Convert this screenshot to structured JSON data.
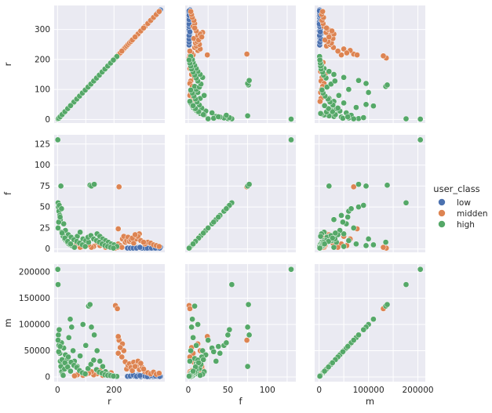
{
  "chart_data": {
    "type": "scatter",
    "kind": "pairplot",
    "variables": [
      "r",
      "f",
      "m"
    ],
    "hue": "user_class",
    "legend": {
      "title": "user_class",
      "placement": "right",
      "entries": [
        {
          "name": "low",
          "color": "#4c72b0"
        },
        {
          "name": "midden",
          "color": "#dd8452"
        },
        {
          "name": "high",
          "color": "#55a868"
        }
      ]
    },
    "axes": {
      "r": {
        "lim": [
          -12,
          380
        ],
        "ticks": [
          0,
          100,
          200,
          300
        ],
        "tick_labels": [
          "0",
          "100",
          "200",
          "300"
        ],
        "bottom_tick_labels": [
          "0",
          "200"
        ],
        "label": "r"
      },
      "f": {
        "lim": [
          -4,
          136
        ],
        "ticks": [
          0,
          25,
          50,
          75,
          100,
          125
        ],
        "tick_labels": [
          "0",
          "25",
          "50",
          "75",
          "100",
          "125"
        ],
        "bottom_tick_labels": [
          "0",
          "50",
          "100"
        ],
        "label": "f"
      },
      "m": {
        "lim": [
          -9000,
          215000
        ],
        "ticks": [
          0,
          50000,
          100000,
          150000,
          200000
        ],
        "tick_labels": [
          "0",
          "50000",
          "100000",
          "150000",
          "200000"
        ],
        "bottom_tick_labels": [
          "0",
          "100000",
          "200000"
        ],
        "label": "m"
      }
    },
    "grid": true,
    "points": {
      "low": {
        "r": [
          345,
          352,
          360,
          338,
          330,
          322,
          315,
          305,
          295,
          285,
          278,
          270,
          262,
          255,
          248,
          300,
          290,
          310,
          325,
          340,
          355,
          365,
          258,
          268,
          280,
          292,
          318,
          333,
          347,
          362
        ],
        "f": [
          1,
          1,
          2,
          1,
          1,
          2,
          1,
          1,
          1,
          2,
          1,
          1,
          1,
          1,
          1,
          1,
          2,
          1,
          1,
          1,
          1,
          2,
          1,
          1,
          1,
          2,
          1,
          1,
          1,
          1
        ],
        "m": [
          500,
          1200,
          3000,
          800,
          2500,
          4000,
          1500,
          2000,
          600,
          3500,
          900,
          1800,
          2200,
          700,
          1100,
          2600,
          3200,
          1400,
          500,
          2900,
          4200,
          800,
          1600,
          3800,
          1000,
          2400,
          600,
          3000,
          1900,
          700
        ]
      },
      "midden": {
        "r": [
          205,
          212,
          218,
          190,
          180,
          170,
          160,
          150,
          140,
          128,
          120,
          110,
          100,
          90,
          80,
          70,
          60,
          215,
          230,
          235,
          240,
          245,
          250,
          255,
          260,
          270,
          280,
          290,
          300,
          310,
          320,
          330,
          340,
          350,
          360,
          285,
          295,
          265,
          275,
          305,
          215,
          222,
          228
        ],
        "f": [
          1,
          2,
          74,
          3,
          5,
          2,
          6,
          4,
          8,
          3,
          2,
          5,
          7,
          3,
          2,
          6,
          4,
          24,
          12,
          15,
          8,
          10,
          14,
          9,
          11,
          7,
          12,
          18,
          9,
          6,
          8,
          7,
          5,
          4,
          3,
          15,
          10,
          13,
          17,
          8,
          6,
          4,
          2
        ],
        "m": [
          136000,
          130000,
          70000,
          8000,
          5000,
          9000,
          3000,
          12000,
          6000,
          4000,
          10000,
          7000,
          5000,
          3000,
          8000,
          4000,
          2000,
          77000,
          63000,
          50000,
          29000,
          15000,
          22000,
          25000,
          18000,
          28000,
          22000,
          14000,
          18000,
          10000,
          8000,
          6000,
          9000,
          5000,
          7000,
          30000,
          26000,
          12000,
          20000,
          15000,
          45000,
          56000,
          38000
        ]
      },
      "high": {
        "r": [
          1,
          2,
          3,
          5,
          8,
          10,
          12,
          15,
          18,
          20,
          25,
          30,
          35,
          40,
          45,
          50,
          55,
          60,
          70,
          80,
          90,
          100,
          110,
          115,
          120,
          130,
          140,
          150,
          160,
          170,
          180,
          190,
          200,
          210,
          6,
          14,
          22,
          28,
          38,
          48,
          58,
          68,
          78,
          88,
          98,
          108,
          118,
          128,
          138,
          148,
          158,
          168,
          178,
          188,
          198,
          2,
          4,
          9,
          16,
          26,
          36,
          46
        ],
        "f": [
          130,
          55,
          50,
          45,
          40,
          35,
          75,
          20,
          18,
          15,
          12,
          10,
          8,
          6,
          5,
          4,
          3,
          2,
          15,
          20,
          12,
          10,
          8,
          76,
          75,
          77,
          18,
          15,
          12,
          10,
          8,
          6,
          5,
          3,
          52,
          48,
          30,
          22,
          17,
          14,
          11,
          9,
          7,
          5,
          3,
          14,
          16,
          12,
          10,
          8,
          6,
          4,
          3,
          2,
          1,
          25,
          32,
          38,
          19,
          13,
          9,
          6
        ],
        "m": [
          205000,
          176000,
          80000,
          60000,
          45000,
          30000,
          20000,
          10000,
          5000,
          3000,
          15000,
          25000,
          35000,
          75000,
          110000,
          95000,
          50000,
          30000,
          20000,
          40000,
          100000,
          60000,
          135000,
          138000,
          95000,
          80000,
          50000,
          30000,
          20000,
          10000,
          5000,
          3000,
          2000,
          1000,
          90000,
          65000,
          55000,
          42000,
          38000,
          28000,
          22000,
          18000,
          12000,
          8000,
          6000,
          16000,
          24000,
          32000,
          14000,
          9000,
          7000,
          4000,
          3000,
          2500,
          1500,
          70000,
          48000,
          58000,
          33000,
          27000,
          19000,
          11000
        ]
      }
    }
  }
}
